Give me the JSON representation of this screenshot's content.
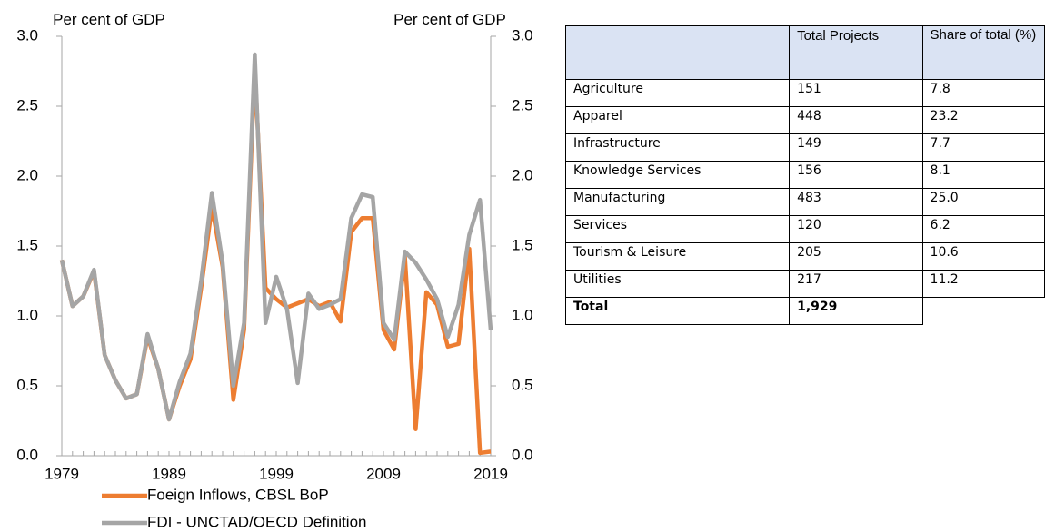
{
  "chart_data": {
    "type": "line",
    "y_label": "Per cent of GDP",
    "y2_label": "Per cent of GDP",
    "x": [
      1979,
      1980,
      1981,
      1982,
      1983,
      1984,
      1985,
      1986,
      1987,
      1988,
      1989,
      1990,
      1991,
      1992,
      1993,
      1994,
      1995,
      1996,
      1997,
      1998,
      1999,
      2000,
      2001,
      2002,
      2003,
      2004,
      2005,
      2006,
      2007,
      2008,
      2009,
      2010,
      2011,
      2012,
      2013,
      2014,
      2015,
      2016,
      2017,
      2018,
      2019
    ],
    "xlim": [
      1979,
      2019
    ],
    "xticks": [
      1979,
      1989,
      1999,
      2009,
      2019
    ],
    "ylim": [
      0,
      3
    ],
    "yticks": [
      {
        "value": 0,
        "label": "0.0"
      },
      {
        "value": 0.5,
        "label": "0.5"
      },
      {
        "value": 1,
        "label": "1.0"
      },
      {
        "value": 1.5,
        "label": "1.5"
      },
      {
        "value": 2,
        "label": "2.0"
      },
      {
        "value": 2.5,
        "label": "2.5"
      },
      {
        "value": 3,
        "label": "3.0"
      }
    ],
    "y2lim": [
      0,
      3
    ],
    "y2ticks": [
      {
        "value": 0,
        "label": "0.0"
      },
      {
        "value": 0.5,
        "label": "0.5"
      },
      {
        "value": 1,
        "label": "1.0"
      },
      {
        "value": 1.5,
        "label": "1.5"
      },
      {
        "value": 2,
        "label": "2.0"
      },
      {
        "value": 2.5,
        "label": "2.5"
      },
      {
        "value": 3,
        "label": "3.0"
      }
    ],
    "legend": "bottom",
    "series": [
      {
        "name": "Foeign Inflows, CBSL BoP",
        "color": "#ed7d31",
        "values": [
          1.4,
          1.07,
          1.14,
          1.32,
          0.72,
          0.54,
          0.41,
          0.44,
          0.85,
          0.62,
          0.26,
          0.5,
          0.69,
          1.2,
          1.78,
          1.35,
          0.4,
          0.9,
          2.77,
          1.2,
          1.12,
          1.06,
          1.09,
          1.12,
          1.07,
          1.1,
          0.96,
          1.6,
          1.7,
          1.7,
          0.9,
          0.76,
          1.42,
          0.19,
          1.17,
          1.08,
          0.78,
          0.8,
          1.48,
          0.02,
          0.03
        ]
      },
      {
        "name": "FDI - UNCTAD/OECD Definition",
        "color": "#a5a5a5",
        "values": [
          1.4,
          1.07,
          1.14,
          1.33,
          0.72,
          0.54,
          0.41,
          0.44,
          0.87,
          0.62,
          0.26,
          0.53,
          0.73,
          1.25,
          1.88,
          1.38,
          0.5,
          0.95,
          2.87,
          0.95,
          1.28,
          1.05,
          0.52,
          1.16,
          1.05,
          1.08,
          1.12,
          1.7,
          1.87,
          1.85,
          0.95,
          0.83,
          1.46,
          1.38,
          1.26,
          1.12,
          0.85,
          1.08,
          1.58,
          1.83,
          0.9
        ]
      }
    ]
  },
  "table": {
    "columns": [
      "Total Projects",
      "Share of total (%)"
    ],
    "rows": [
      [
        "Agriculture",
        "151",
        "7.8"
      ],
      [
        "Apparel",
        "448",
        "23.2"
      ],
      [
        "Infrastructure",
        "149",
        "7.7"
      ],
      [
        "Knowledge Services",
        "156",
        "8.1"
      ],
      [
        "Manufacturing",
        "483",
        "25.0"
      ],
      [
        "Services",
        "120",
        "6.2"
      ],
      [
        "Tourism & Leisure",
        "205",
        "10.6"
      ],
      [
        "Utilities",
        "217",
        "11.2"
      ]
    ],
    "total": [
      "Total",
      "1,929"
    ]
  }
}
